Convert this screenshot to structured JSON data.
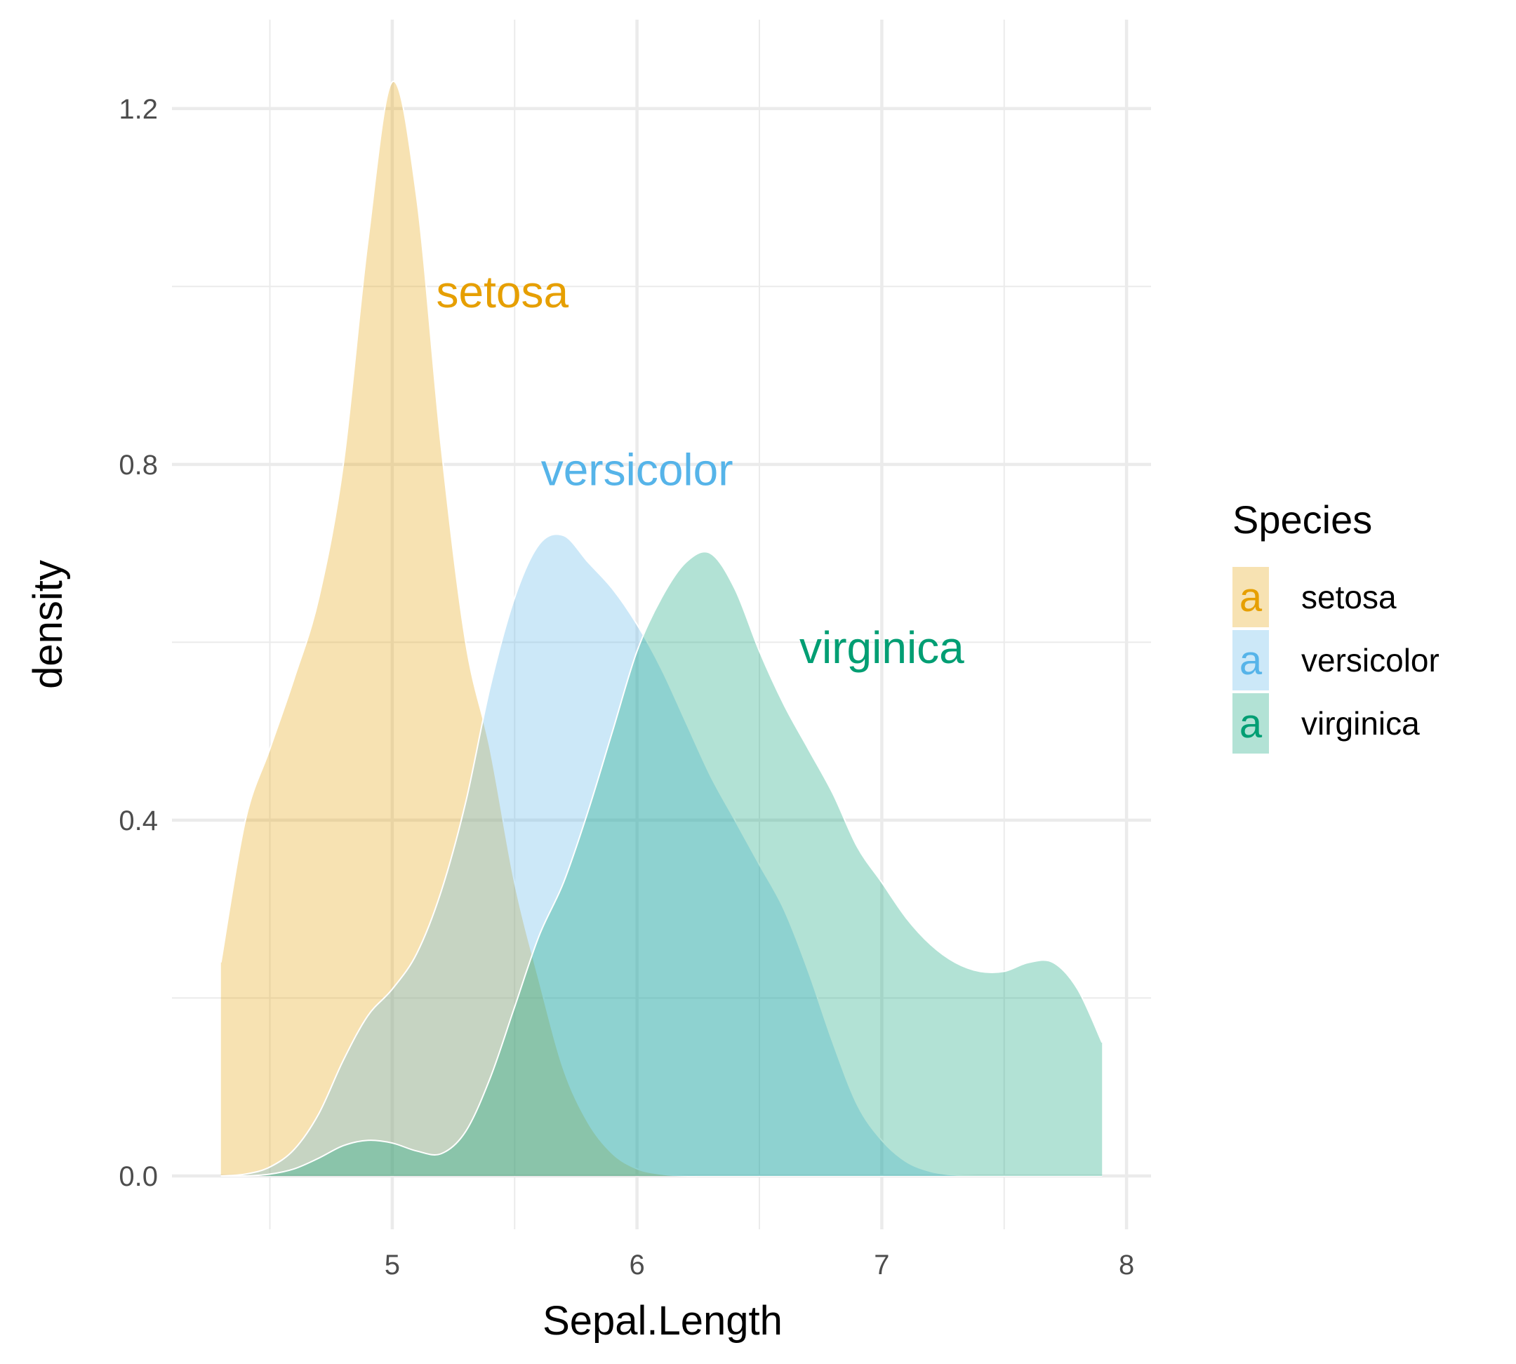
{
  "chart_data": {
    "type": "area",
    "xlabel": "Sepal.Length",
    "ylabel": "density",
    "xlim": [
      4.1,
      8.1
    ],
    "ylim": [
      -0.06,
      1.3
    ],
    "x_ticks": [
      5,
      6,
      7,
      8
    ],
    "y_ticks": [
      0.0,
      0.4,
      0.8,
      1.2
    ],
    "x_tick_labels": [
      "5",
      "6",
      "7",
      "8"
    ],
    "y_tick_labels": [
      "0.0",
      "0.4",
      "0.8",
      "1.2"
    ],
    "grid": true,
    "legend": {
      "title": "Species",
      "position": "right",
      "key_glyph": "a"
    },
    "series": [
      {
        "name": "setosa",
        "color": "#E69F00",
        "label_text": "setosa",
        "label_pos": [
          5.45,
          0.99
        ],
        "x": [
          4.3,
          4.4,
          4.5,
          4.6,
          4.7,
          4.8,
          4.9,
          5.0,
          5.1,
          5.2,
          5.3,
          5.4,
          5.5,
          5.6,
          5.7,
          5.8,
          5.9,
          6.0,
          6.1,
          6.2,
          6.3,
          6.4,
          6.5,
          6.6,
          6.7,
          6.8,
          6.9,
          7.0,
          7.1,
          7.2,
          7.3,
          7.4,
          7.5,
          7.6,
          7.7,
          7.8,
          7.9
        ],
        "y": [
          0.24,
          0.4,
          0.48,
          0.56,
          0.65,
          0.8,
          1.05,
          1.23,
          1.1,
          0.82,
          0.6,
          0.48,
          0.33,
          0.22,
          0.12,
          0.06,
          0.025,
          0.008,
          0.002,
          0.0,
          0.0,
          0.0,
          0.0,
          0.0,
          0.0,
          0.0,
          0.0,
          0.0,
          0.0,
          0.0,
          0.0,
          0.0,
          0.0,
          0.0,
          0.0,
          0.0,
          0.0
        ]
      },
      {
        "name": "versicolor",
        "color": "#56B4E9",
        "label_text": "versicolor",
        "label_pos": [
          6.0,
          0.79
        ],
        "x": [
          4.3,
          4.4,
          4.5,
          4.6,
          4.7,
          4.8,
          4.9,
          5.0,
          5.1,
          5.2,
          5.3,
          5.4,
          5.5,
          5.6,
          5.7,
          5.8,
          5.9,
          6.0,
          6.1,
          6.2,
          6.3,
          6.4,
          6.5,
          6.6,
          6.7,
          6.8,
          6.9,
          7.0,
          7.1,
          7.2,
          7.3,
          7.4,
          7.5,
          7.6,
          7.7,
          7.8,
          7.9
        ],
        "y": [
          0.0,
          0.002,
          0.01,
          0.03,
          0.07,
          0.13,
          0.18,
          0.21,
          0.25,
          0.32,
          0.42,
          0.55,
          0.65,
          0.71,
          0.72,
          0.69,
          0.66,
          0.62,
          0.57,
          0.51,
          0.45,
          0.4,
          0.35,
          0.3,
          0.23,
          0.15,
          0.08,
          0.04,
          0.016,
          0.005,
          0.001,
          0.0,
          0.0,
          0.0,
          0.0,
          0.0,
          0.0
        ]
      },
      {
        "name": "virginica",
        "color": "#009E73",
        "label_text": "virginica",
        "label_pos": [
          7.0,
          0.59
        ],
        "x": [
          4.3,
          4.4,
          4.5,
          4.6,
          4.7,
          4.8,
          4.9,
          5.0,
          5.1,
          5.2,
          5.3,
          5.4,
          5.5,
          5.6,
          5.7,
          5.8,
          5.9,
          6.0,
          6.1,
          6.2,
          6.3,
          6.4,
          6.5,
          6.6,
          6.7,
          6.8,
          6.9,
          7.0,
          7.1,
          7.2,
          7.3,
          7.4,
          7.5,
          7.6,
          7.7,
          7.8,
          7.9
        ],
        "y": [
          0.0,
          0.0,
          0.002,
          0.008,
          0.02,
          0.034,
          0.04,
          0.037,
          0.028,
          0.025,
          0.05,
          0.11,
          0.19,
          0.27,
          0.33,
          0.41,
          0.5,
          0.59,
          0.65,
          0.69,
          0.7,
          0.66,
          0.59,
          0.53,
          0.48,
          0.43,
          0.37,
          0.33,
          0.29,
          0.26,
          0.24,
          0.23,
          0.23,
          0.24,
          0.24,
          0.21,
          0.15
        ]
      }
    ]
  }
}
